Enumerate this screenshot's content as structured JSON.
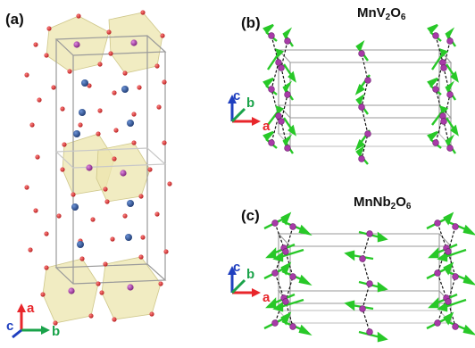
{
  "panels": [
    {
      "label": "(a)"
    },
    {
      "label": "(b)",
      "title": {
        "base": "MnV",
        "sub1": "2",
        "mid": "O",
        "sub2": "6"
      }
    },
    {
      "label": "(c)",
      "title": {
        "base": "MnNb",
        "sub1": "2",
        "mid": "O",
        "sub2": "6"
      }
    }
  ],
  "axes": {
    "a": "a",
    "b": "b",
    "c": "c"
  },
  "colors": {
    "axis_a": "#e8262b",
    "axis_b": "#1aa34a",
    "axis_c": "#1f3fbf",
    "oxygen": "#d6252b",
    "cation": "#2c4f8f",
    "mn": "#a83aa8",
    "spin": "#28c828",
    "octahedron": "#e9e2a6",
    "cell_edge": "#9a9a9a",
    "chain": "#111111"
  }
}
